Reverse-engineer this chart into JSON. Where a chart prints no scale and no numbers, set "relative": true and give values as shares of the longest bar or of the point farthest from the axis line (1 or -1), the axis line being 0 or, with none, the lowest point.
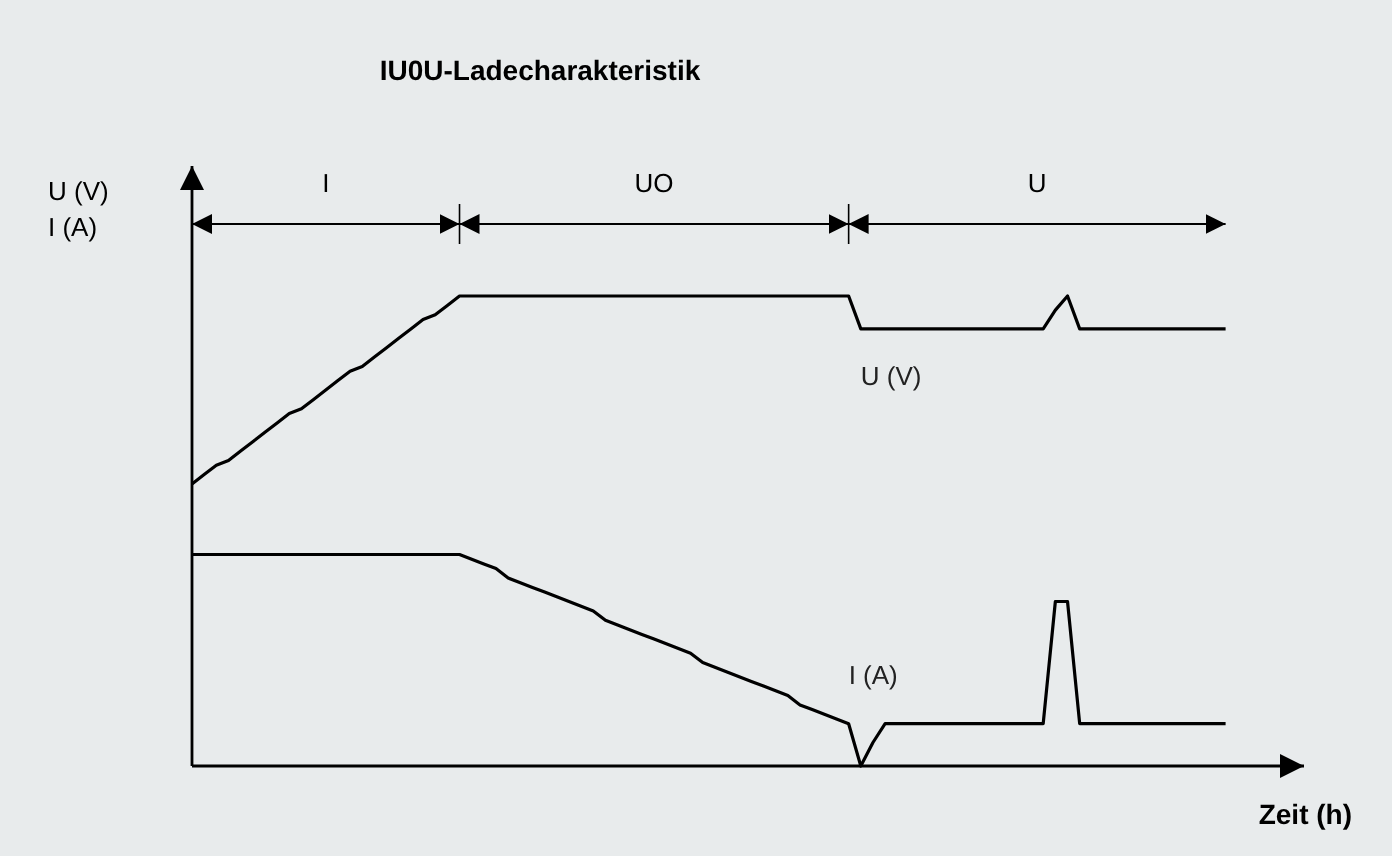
{
  "chart_data": {
    "type": "line",
    "title": "IU0U-Ladecharakteristik",
    "xlabel": "Zeit (h)",
    "ylabel": "U (V)\nI (A)",
    "relative": true,
    "marker": "none",
    "line_style": "solid",
    "categories": [
      null,
      null,
      null,
      null,
      null,
      null,
      null,
      null,
      null,
      null,
      null,
      null,
      null,
      null,
      null,
      null,
      null,
      null,
      null,
      null,
      null,
      null,
      null,
      null,
      null,
      null,
      null,
      null,
      null,
      null,
      null,
      null,
      null,
      null,
      null,
      null,
      null,
      null,
      null,
      null,
      null,
      null,
      null,
      null,
      null,
      null,
      null,
      null,
      null,
      null,
      null,
      null,
      null,
      null,
      null,
      null,
      null,
      null,
      null,
      null,
      null,
      null,
      null,
      null,
      null,
      null,
      null,
      null,
      null,
      null,
      null,
      null,
      null,
      null,
      null,
      null,
      null,
      null,
      null,
      null,
      null,
      null,
      null,
      null,
      null,
      null
    ],
    "series": [
      {
        "name": "U (V)",
        "color": "#000000",
        "values": [
          0.6,
          0.62,
          0.64,
          0.65,
          0.67,
          0.69,
          0.71,
          0.73,
          0.75,
          0.76,
          0.78,
          0.8,
          0.82,
          0.84,
          0.85,
          0.87,
          0.89,
          0.91,
          0.93,
          0.95,
          0.96,
          0.98,
          1,
          1,
          1,
          1,
          1,
          1,
          1,
          1,
          1,
          1,
          1,
          1,
          1,
          1,
          1,
          1,
          1,
          1,
          1,
          1,
          1,
          1,
          1,
          1,
          1,
          1,
          1,
          1,
          1,
          1,
          1,
          1,
          1,
          0.93,
          0.93,
          0.93,
          0.93,
          0.93,
          0.93,
          0.93,
          0.93,
          0.93,
          0.93,
          0.93,
          0.93,
          0.93,
          0.93,
          0.93,
          0.93,
          0.97,
          1,
          0.93,
          0.93,
          0.93,
          0.93,
          0.93,
          0.93,
          0.93,
          0.93,
          0.93,
          0.93,
          0.93,
          0.93,
          0.93
        ]
      },
      {
        "name": "I (A)",
        "color": "#000000",
        "values": [
          0.45,
          0.45,
          0.45,
          0.45,
          0.45,
          0.45,
          0.45,
          0.45,
          0.45,
          0.45,
          0.45,
          0.45,
          0.45,
          0.45,
          0.45,
          0.45,
          0.45,
          0.45,
          0.45,
          0.45,
          0.45,
          0.45,
          0.45,
          0.44,
          0.43,
          0.42,
          0.4,
          0.39,
          0.38,
          0.37,
          0.36,
          0.35,
          0.34,
          0.33,
          0.31,
          0.3,
          0.29,
          0.28,
          0.27,
          0.26,
          0.25,
          0.24,
          0.22,
          0.21,
          0.2,
          0.19,
          0.18,
          0.17,
          0.16,
          0.15,
          0.13,
          0.12,
          0.11,
          0.1,
          0.09,
          0,
          0.05,
          0.09,
          0.09,
          0.09,
          0.09,
          0.09,
          0.09,
          0.09,
          0.09,
          0.09,
          0.09,
          0.09,
          0.09,
          0.09,
          0.09,
          0.35,
          0.35,
          0.09,
          0.09,
          0.09,
          0.09,
          0.09,
          0.09,
          0.09,
          0.09,
          0.09,
          0.09,
          0.09,
          0.09,
          0.09
        ]
      }
    ],
    "annotations": [
      "I",
      "UO",
      "U"
    ]
  }
}
